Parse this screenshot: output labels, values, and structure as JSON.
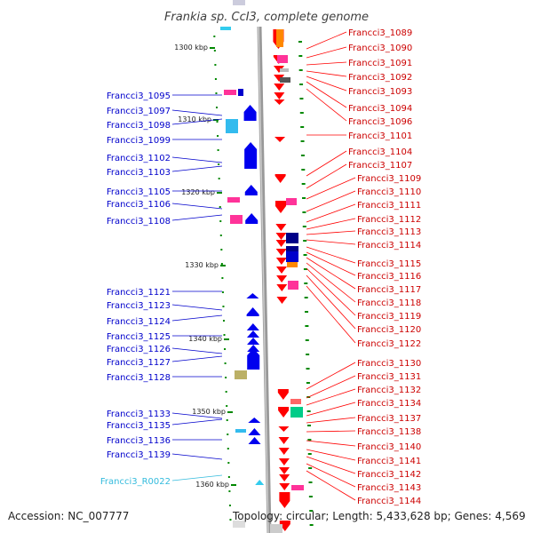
{
  "title": "Frankia sp. CcI3, complete genome",
  "footer": {
    "accession": "Accession: NC_007777",
    "topology": "Topology: circular; Length: 5,433,628 bp; Genes: 4,569"
  },
  "colors": {
    "forward": "#ff0000",
    "reverse": "#0000ee",
    "rna": "#33ccee",
    "backbone": "#888888",
    "tick": "#008800"
  },
  "kbp_labels": [
    "1300 kbp",
    "1310 kbp",
    "1320 kbp",
    "1330 kbp",
    "1340 kbp",
    "1350 kbp",
    "1360 kbp"
  ],
  "left_genes": [
    {
      "name": "Francci3_1095",
      "color": "#0000cc"
    },
    {
      "name": "Francci3_1097",
      "color": "#0000cc"
    },
    {
      "name": "Francci3_1098",
      "color": "#0000cc"
    },
    {
      "name": "Francci3_1099",
      "color": "#0000cc"
    },
    {
      "name": "Francci3_1102",
      "color": "#0000cc"
    },
    {
      "name": "Francci3_1103",
      "color": "#0000cc"
    },
    {
      "name": "Francci3_1105",
      "color": "#0000cc"
    },
    {
      "name": "Francci3_1106",
      "color": "#0000cc"
    },
    {
      "name": "Francci3_1108",
      "color": "#0000cc"
    },
    {
      "name": "Francci3_1121",
      "color": "#0000cc"
    },
    {
      "name": "Francci3_1123",
      "color": "#0000cc"
    },
    {
      "name": "Francci3_1124",
      "color": "#0000cc"
    },
    {
      "name": "Francci3_1125",
      "color": "#0000cc"
    },
    {
      "name": "Francci3_1126",
      "color": "#0000cc"
    },
    {
      "name": "Francci3_1127",
      "color": "#0000cc"
    },
    {
      "name": "Francci3_1128",
      "color": "#0000cc"
    },
    {
      "name": "Francci3_1133",
      "color": "#0000cc"
    },
    {
      "name": "Francci3_1135",
      "color": "#0000cc"
    },
    {
      "name": "Francci3_1136",
      "color": "#0000cc"
    },
    {
      "name": "Francci3_1139",
      "color": "#0000cc"
    },
    {
      "name": "Francci3_R0022",
      "color": "#33bbdd"
    }
  ],
  "right_genes": [
    "Francci3_1089",
    "Francci3_1090",
    "Francci3_1091",
    "Francci3_1092",
    "Francci3_1093",
    "Francci3_1094",
    "Francci3_1096",
    "Francci3_1101",
    "Francci3_1104",
    "Francci3_1107",
    "Francci3_1109",
    "Francci3_1110",
    "Francci3_1111",
    "Francci3_1112",
    "Francci3_1113",
    "Francci3_1114",
    "Francci3_1115",
    "Francci3_1116",
    "Francci3_1117",
    "Francci3_1118",
    "Francci3_1119",
    "Francci3_1120",
    "Francci3_1122",
    "Francci3_1130",
    "Francci3_1131",
    "Francci3_1132",
    "Francci3_1134",
    "Francci3_1137",
    "Francci3_1138",
    "Francci3_1140",
    "Francci3_1141",
    "Francci3_1142",
    "Francci3_1143",
    "Francci3_1144"
  ]
}
